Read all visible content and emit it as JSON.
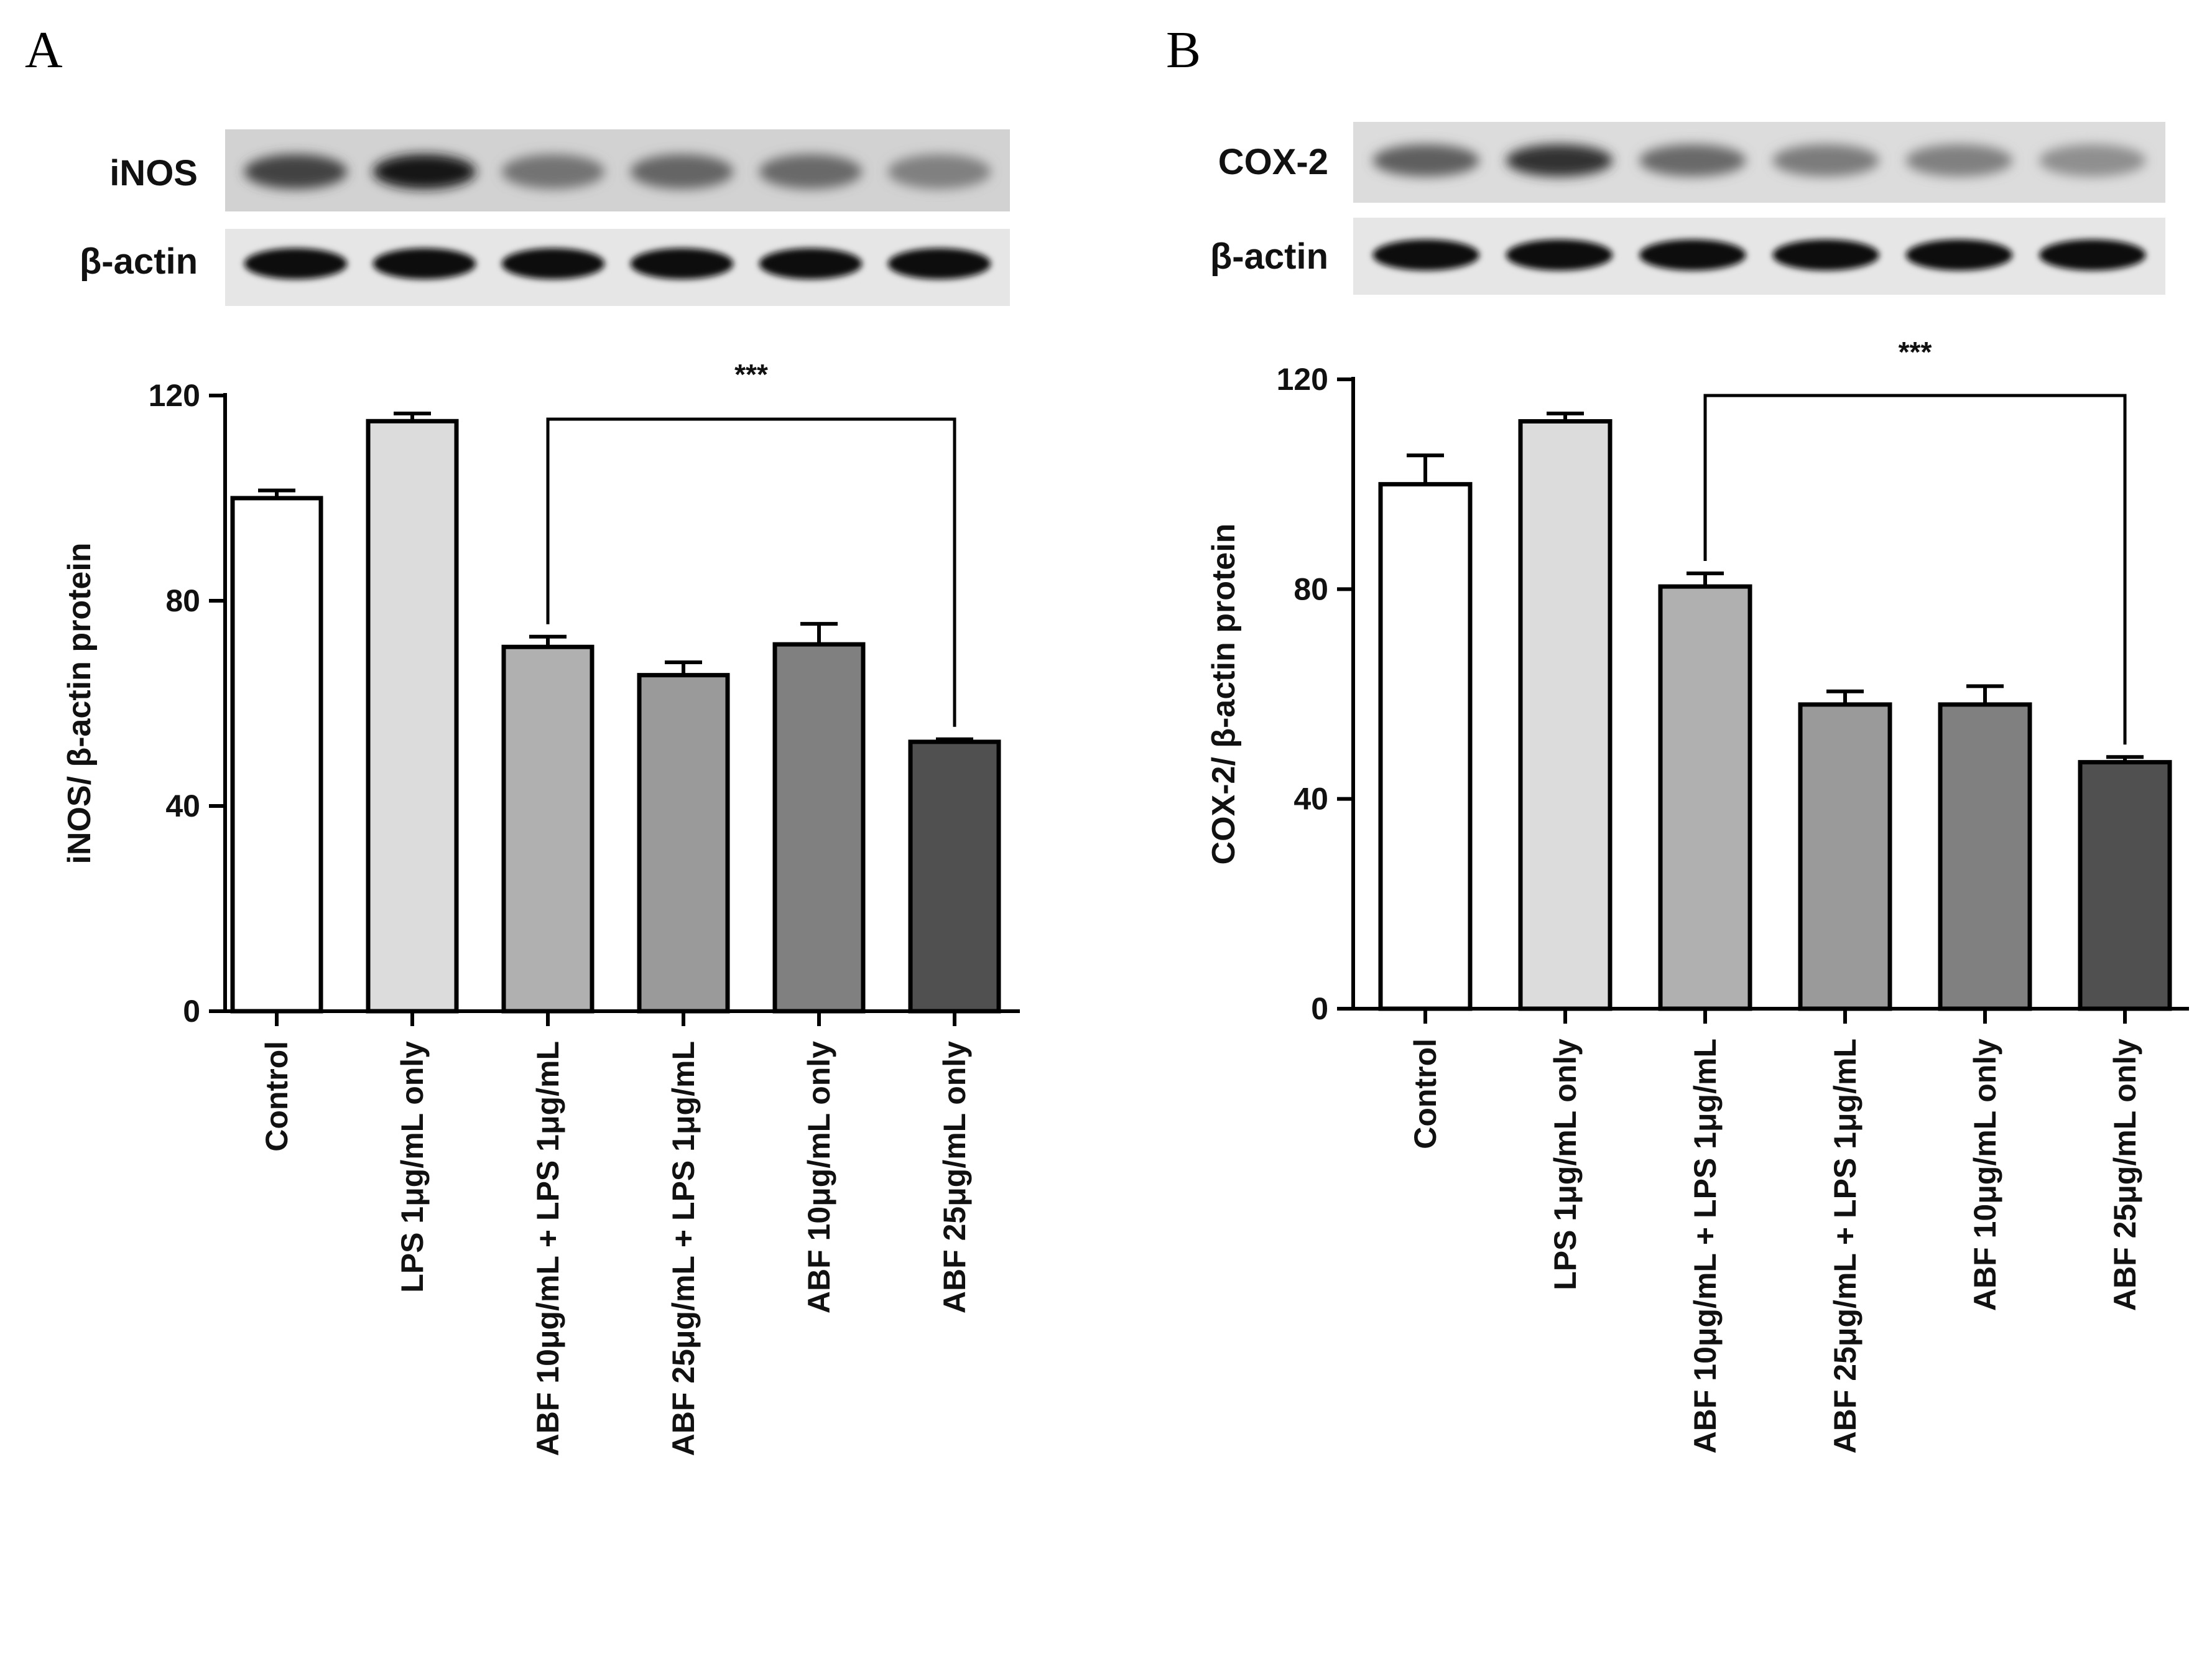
{
  "panels": [
    {
      "letter": "A",
      "blots": [
        {
          "label": "iNOS",
          "bands": [
            0.7,
            0.95,
            0.45,
            0.52,
            0.5,
            0.38
          ],
          "tone": "protein"
        },
        {
          "label": "β-actin",
          "bands": [
            1.0,
            1.0,
            1.0,
            1.0,
            1.0,
            1.0
          ],
          "tone": "loading"
        }
      ]
    },
    {
      "letter": "B",
      "blots": [
        {
          "label": "COX-2",
          "bands": [
            0.55,
            0.8,
            0.5,
            0.4,
            0.38,
            0.3
          ],
          "tone": "protein"
        },
        {
          "label": "β-actin",
          "bands": [
            1.0,
            1.0,
            1.0,
            1.0,
            1.0,
            1.0
          ],
          "tone": "loading"
        }
      ]
    }
  ],
  "chart_data": [
    {
      "type": "bar",
      "ylabel": "iNOS/ β-actin protein",
      "ylim": [
        0,
        120
      ],
      "yticks": [
        "0",
        "40",
        "80",
        "120"
      ],
      "categories": [
        "Control",
        "LPS 1μg/mL only",
        "ABF 10μg/mL + LPS 1μg/mL",
        "ABF 25μg/mL + LPS 1μg/mL",
        "ABF 10μg/mL only",
        "ABF 25μg/mL only"
      ],
      "values": [
        100,
        115,
        71,
        65.5,
        71.5,
        52.5
      ],
      "errors": [
        1.5,
        1.5,
        2,
        2.5,
        4,
        0.5
      ],
      "bar_colors": [
        "#ffffff",
        "#dcdcdc",
        "#b0b0b0",
        "#9a9a9a",
        "#808080",
        "#505050"
      ],
      "significance": {
        "label": "***",
        "from": 2,
        "to": 5
      }
    },
    {
      "type": "bar",
      "ylabel": "COX-2/ β-actin protein",
      "ylim": [
        0,
        120
      ],
      "yticks": [
        "0",
        "40",
        "80",
        "120"
      ],
      "categories": [
        "Control",
        "LPS 1μg/mL only",
        "ABF 10μg/mL + LPS 1μg/mL",
        "ABF 25μg/mL + LPS 1μg/mL",
        "ABF 10μg/mL only",
        "ABF 25μg/mL only"
      ],
      "values": [
        100,
        112,
        80.5,
        58,
        58,
        47
      ],
      "errors": [
        5.5,
        1.5,
        2.5,
        2.5,
        3.5,
        1
      ],
      "bar_colors": [
        "#ffffff",
        "#dcdcdc",
        "#b0b0b0",
        "#9a9a9a",
        "#808080",
        "#505050"
      ],
      "significance": {
        "label": "***",
        "from": 2,
        "to": 5
      }
    }
  ]
}
